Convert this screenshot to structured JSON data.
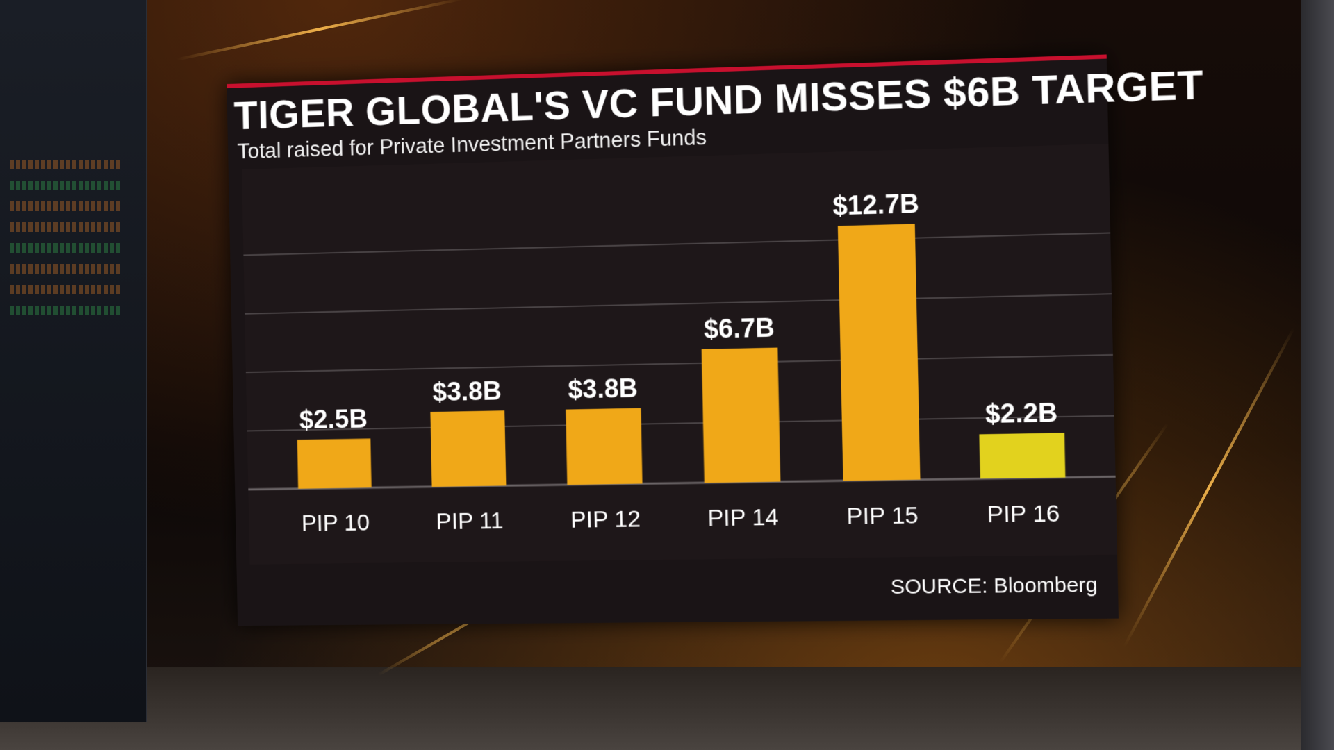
{
  "header": {
    "title": "TIGER GLOBAL'S VC FUND MISSES $6B TARGET",
    "subtitle": "Total raised for Private Investment Partners Funds"
  },
  "footer": {
    "source": "SOURCE: Bloomberg"
  },
  "colors": {
    "bar": "#f0a818",
    "bar_highlight": "#e2d21e",
    "accent": "#c8102e",
    "label": "#ffffff",
    "grid": "#4a4446"
  },
  "chart_data": {
    "type": "bar",
    "title": "TIGER GLOBAL'S VC FUND MISSES $6B TARGET",
    "subtitle": "Total raised for Private Investment Partners Funds",
    "categories": [
      "PIP 10",
      "PIP 11",
      "PIP 12",
      "PIP 14",
      "PIP 15",
      "PIP 16"
    ],
    "values": [
      2.5,
      3.8,
      3.8,
      6.7,
      12.7,
      2.2
    ],
    "data_labels": [
      "$2.5B",
      "$3.8B",
      "$3.8B",
      "$6.7B",
      "$12.7B",
      "$2.2B"
    ],
    "highlight_index": 5,
    "xlabel": "",
    "ylabel": "",
    "ylim": [
      0,
      15
    ],
    "grid": true,
    "gridlines_y": [
      3,
      6,
      9,
      12
    ],
    "legend": "none"
  }
}
